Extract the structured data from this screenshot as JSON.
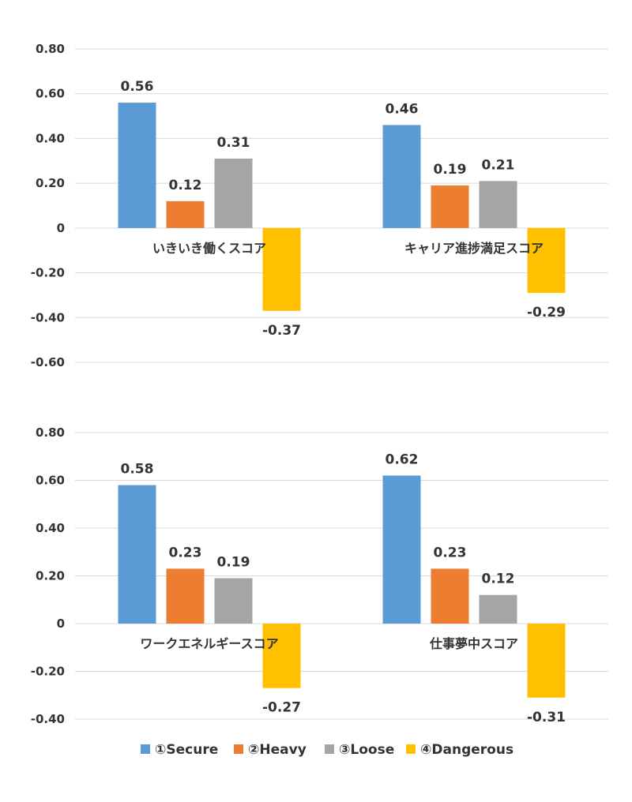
{
  "chart_data": [
    {
      "type": "bar",
      "title": "",
      "xlabel": "",
      "ylabel": "",
      "ylim": [
        -0.6,
        0.8
      ],
      "y_ticks": [
        "0.80",
        "0.60",
        "0.40",
        "0.20",
        "0",
        "-0.20",
        "-0.40",
        "-0.60"
      ],
      "y_tick_values": [
        0.8,
        0.6,
        0.4,
        0.2,
        0,
        -0.2,
        -0.4,
        -0.6
      ],
      "grid": true,
      "categories": [
        "いきいき働くスコア",
        "キャリア進捗満足スコア"
      ],
      "series": [
        {
          "name": "①Secure",
          "values": [
            0.56,
            0.46
          ],
          "labels": [
            "0.56",
            "0.46"
          ]
        },
        {
          "name": "②Heavy",
          "values": [
            0.12,
            0.19
          ],
          "labels": [
            "0.12",
            "0.19"
          ]
        },
        {
          "name": "③Loose",
          "values": [
            0.31,
            0.21
          ],
          "labels": [
            "0.31",
            "0.21"
          ]
        },
        {
          "name": "④Dangerous",
          "values": [
            -0.37,
            -0.29
          ],
          "labels": [
            "-0.37",
            "-0.29"
          ]
        }
      ]
    },
    {
      "type": "bar",
      "title": "",
      "xlabel": "",
      "ylabel": "",
      "ylim": [
        -0.4,
        0.8
      ],
      "y_ticks": [
        "0.80",
        "0.60",
        "0.40",
        "0.20",
        "0",
        "-0.20",
        "-0.40"
      ],
      "y_tick_values": [
        0.8,
        0.6,
        0.4,
        0.2,
        0,
        -0.2,
        -0.4
      ],
      "grid": true,
      "categories": [
        "ワークエネルギースコア",
        "仕事夢中スコア"
      ],
      "series": [
        {
          "name": "①Secure",
          "values": [
            0.58,
            0.62
          ],
          "labels": [
            "0.58",
            "0.62"
          ]
        },
        {
          "name": "②Heavy",
          "values": [
            0.23,
            0.23
          ],
          "labels": [
            "0.23",
            "0.23"
          ]
        },
        {
          "name": "③Loose",
          "values": [
            0.19,
            0.12
          ],
          "labels": [
            "0.19",
            "0.12"
          ]
        },
        {
          "name": "④Dangerous",
          "values": [
            -0.27,
            -0.31
          ],
          "labels": [
            "-0.27",
            "-0.31"
          ]
        }
      ]
    }
  ],
  "legend": {
    "placement": "bottom",
    "items": [
      {
        "label": "①Secure",
        "color": "#5b9bd5"
      },
      {
        "label": "②Heavy",
        "color": "#ed7d31"
      },
      {
        "label": "③Loose",
        "color": "#a5a5a5"
      },
      {
        "label": "④Dangerous",
        "color": "#ffc000"
      }
    ]
  },
  "colors": [
    "#5b9bd5",
    "#ed7d31",
    "#a5a5a5",
    "#ffc000"
  ]
}
